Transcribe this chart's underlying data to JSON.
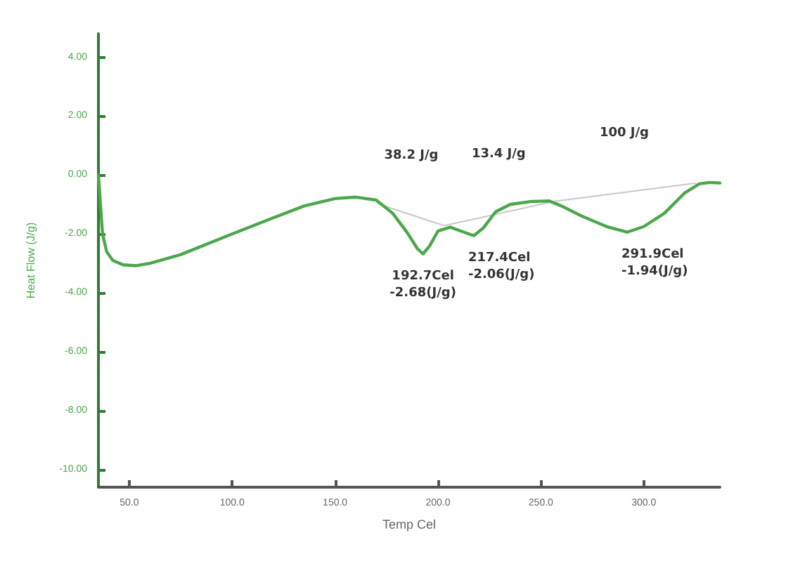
{
  "chart_data": {
    "type": "line",
    "xlabel": "Temp Cel",
    "ylabel": "Heat Flow (J/g)",
    "xlim": [
      35,
      337
    ],
    "ylim": [
      -10.6,
      4.8
    ],
    "xticks": [
      {
        "value": 50,
        "label": "50.0"
      },
      {
        "value": 100,
        "label": "100.0"
      },
      {
        "value": 150,
        "label": "150.0"
      },
      {
        "value": 200,
        "label": "200.0"
      },
      {
        "value": 250,
        "label": "250.0"
      },
      {
        "value": 300,
        "label": "300.0"
      }
    ],
    "yticks": [
      {
        "value": 4,
        "label": "4.00"
      },
      {
        "value": 2,
        "label": "2.00"
      },
      {
        "value": 0,
        "label": "0.00"
      },
      {
        "value": -2,
        "label": "-2.00"
      },
      {
        "value": -4,
        "label": "-4.00"
      },
      {
        "value": -6,
        "label": "-6.00"
      },
      {
        "value": -8,
        "label": "-8.00"
      },
      {
        "value": -10,
        "label": "-10.00"
      }
    ],
    "grid": false,
    "marker": "none",
    "line_style": "solid",
    "series": [
      {
        "color": "#4aa84a",
        "x": [
          35,
          36,
          37,
          39,
          42,
          47,
          53,
          60,
          75,
          100,
          120,
          135,
          150,
          160,
          170,
          178,
          185,
          190,
          192.7,
          196,
          200,
          206,
          211,
          217.4,
          222,
          228,
          235,
          245,
          254,
          260,
          270,
          282,
          291.9,
          300,
          310,
          320,
          327,
          332,
          337
        ],
        "values": [
          0.0,
          -1.0,
          -2.0,
          -2.6,
          -2.9,
          -3.05,
          -3.08,
          -3.0,
          -2.7,
          -2.0,
          -1.45,
          -1.05,
          -0.8,
          -0.75,
          -0.85,
          -1.3,
          -1.95,
          -2.5,
          -2.68,
          -2.4,
          -1.9,
          -1.77,
          -1.9,
          -2.06,
          -1.8,
          -1.25,
          -1.0,
          -0.9,
          -0.88,
          -1.05,
          -1.4,
          -1.75,
          -1.94,
          -1.75,
          -1.3,
          -0.6,
          -0.3,
          -0.25,
          -0.27
        ]
      },
      {
        "color": "#c8c8c8",
        "x": [
          171,
          203,
          256,
          325
        ],
        "values": [
          -0.98,
          -1.72,
          -0.9,
          -0.28
        ]
      }
    ],
    "annotations": [
      "38.2 J/g",
      "13.4 J/g",
      "100 J/g",
      {
        "text": "192.7Cel\n-2.68(J/g)",
        "x": 192.7,
        "y": -2.68
      },
      {
        "text": "217.4Cel\n-2.06(J/g)",
        "x": 217.4,
        "y": -2.06
      },
      {
        "text": "291.9Cel\n-1.94(J/g)",
        "x": 291.9,
        "y": -1.94
      }
    ]
  }
}
